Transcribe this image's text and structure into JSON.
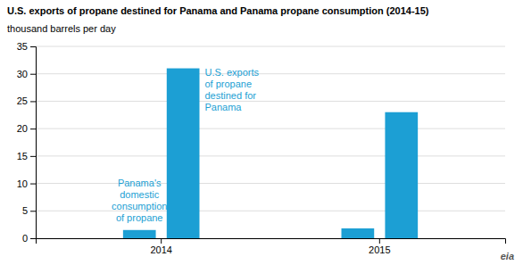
{
  "chart_data": {
    "type": "bar",
    "title": "U.S. exports of propane destined for Panama and Panama propane consumption (2014-15)",
    "ylabel": "thousand barrels per day",
    "categories": [
      "2014",
      "2015"
    ],
    "series": [
      {
        "color": "#1c9fd4",
        "values": [
          1.5,
          1.8
        ]
      },
      {
        "color": "#1c9fd4",
        "values": [
          31.0,
          23.0
        ]
      }
    ],
    "ylim": [
      0,
      35
    ],
    "yticks": [
      0,
      5,
      10,
      15,
      20,
      25,
      30,
      35
    ],
    "grid": true,
    "annotations": [
      "Panama's\ndomestic\nconsumption\nof propane",
      "U.S. exports\nof propane\ndestined for\nPanama",
      "eia"
    ]
  }
}
